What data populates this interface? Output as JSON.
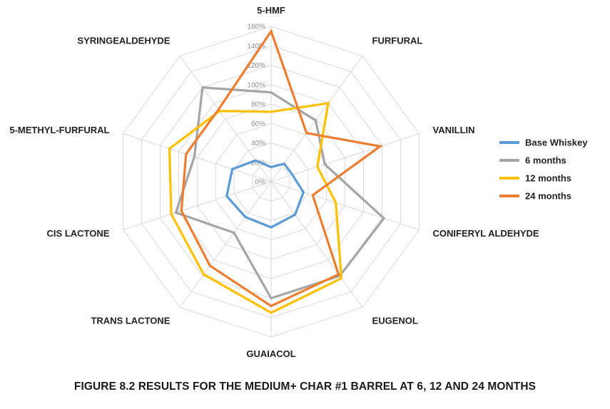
{
  "caption": "FIGURE 8.2  RESULTS FOR THE MEDIUM+ CHAR #1 BARREL AT 6, 12 AND 24 MONTHS",
  "chart_data": {
    "type": "radar",
    "title": "",
    "categories": [
      "5-HMF",
      "FURFURAL",
      "VANILLIN",
      "CONIFERYL ALDEHYDE",
      "EUGENOL",
      "GUAIACOL",
      "TRANS LACTONE",
      "CIS LACTONE",
      "5-METHYL-FURFURAL",
      "SYRINGEALDEHYDE"
    ],
    "ticks": [
      "0%",
      "20%",
      "40%",
      "60%",
      "80%",
      "100%",
      "120%",
      "140%",
      "160%"
    ],
    "rlim": [
      0,
      160
    ],
    "grid": true,
    "legend_position": "right",
    "series": [
      {
        "name": "Base Whiskey",
        "color": "#5b9bd5",
        "values": [
          15,
          23,
          23,
          35,
          42,
          47,
          45,
          48,
          42,
          27
        ]
      },
      {
        "name": "6 months",
        "color": "#a5a5a5",
        "values": [
          92,
          78,
          58,
          122,
          120,
          120,
          65,
          103,
          83,
          120
        ]
      },
      {
        "name": "12 months",
        "color": "#ffc000",
        "values": [
          72,
          100,
          50,
          70,
          123,
          135,
          118,
          108,
          110,
          90
        ]
      },
      {
        "name": "24 months",
        "color": "#ed7d31",
        "values": [
          155,
          62,
          118,
          45,
          118,
          128,
          107,
          97,
          92,
          92
        ]
      }
    ]
  }
}
